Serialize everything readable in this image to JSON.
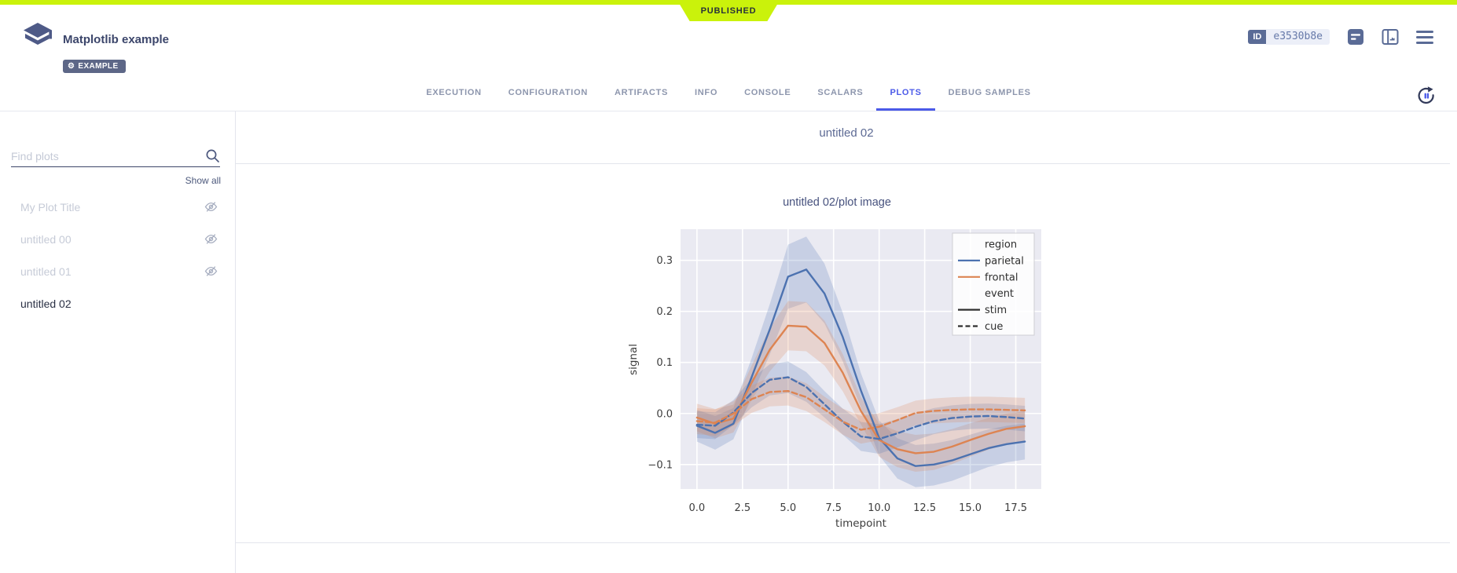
{
  "ribbon": {
    "published_label": "PUBLISHED",
    "color": "#caf20b"
  },
  "header": {
    "title": "Matplotlib example",
    "tag_label": "EXAMPLE",
    "id_label": "ID",
    "id_value": "e3530b8e",
    "icons": [
      "details-icon",
      "side-panel-chart-icon",
      "menu-icon"
    ]
  },
  "tabs": {
    "items": [
      {
        "label": "EXECUTION",
        "active": false
      },
      {
        "label": "CONFIGURATION",
        "active": false
      },
      {
        "label": "ARTIFACTS",
        "active": false
      },
      {
        "label": "INFO",
        "active": false
      },
      {
        "label": "CONSOLE",
        "active": false
      },
      {
        "label": "SCALARS",
        "active": false
      },
      {
        "label": "PLOTS",
        "active": true
      },
      {
        "label": "DEBUG SAMPLES",
        "active": false
      }
    ],
    "active_color": "#4b5ae8",
    "refresh_icon": "auto-refresh-pause-icon"
  },
  "sidebar": {
    "search_placeholder": "Find plots",
    "search_icon": "magnifier",
    "show_all_label": "Show all",
    "hidden_icon": "eye-off-icon",
    "items": [
      {
        "label": "My Plot Title",
        "hidden": true,
        "active": false
      },
      {
        "label": "untitled 00",
        "hidden": true,
        "active": false
      },
      {
        "label": "untitled 01",
        "hidden": true,
        "active": false
      },
      {
        "label": "untitled 02",
        "hidden": false,
        "active": true
      }
    ]
  },
  "main": {
    "group_title": "untitled 02"
  },
  "colors": {
    "published_green": "#caf20b",
    "accent_blue": "#4b5ae8",
    "slate": "#5a6b96",
    "seaborn_blue": "#4c72b0",
    "seaborn_orange": "#dd8452"
  },
  "chart_data": {
    "type": "line",
    "title": "untitled 02/plot image",
    "xlabel": "timepoint",
    "ylabel": "signal",
    "xlim": [
      -0.9,
      18.9
    ],
    "ylim": [
      -0.148,
      0.361
    ],
    "xticks": [
      0,
      2.5,
      5,
      7.5,
      10,
      12.5,
      15,
      17.5
    ],
    "xtick_labels": [
      "0.0",
      "2.5",
      "5.0",
      "7.5",
      "10.0",
      "12.5",
      "15.0",
      "17.5"
    ],
    "yticks": [
      -0.1,
      0,
      0.1,
      0.2,
      0.3
    ],
    "ytick_labels": [
      "−0.1",
      "0.0",
      "0.1",
      "0.2",
      "0.3"
    ],
    "grid": true,
    "legend_position": "upper right",
    "plot_background": "#eaeaf2",
    "grid_color": "#ffffff",
    "x": [
      0,
      1,
      2,
      3,
      4,
      5,
      6,
      7,
      8,
      9,
      10,
      11,
      12,
      13,
      14,
      15,
      16,
      17,
      18
    ],
    "series": [
      {
        "name": "parietal / stim",
        "region": "parietal",
        "event": "stim",
        "color": "#4c72b0",
        "style": "solid",
        "values": [
          -0.024,
          -0.038,
          -0.02,
          0.071,
          0.165,
          0.268,
          0.282,
          0.235,
          0.15,
          0.045,
          -0.048,
          -0.088,
          -0.103,
          -0.1,
          -0.092,
          -0.08,
          -0.068,
          -0.06,
          -0.055
        ],
        "ci_base": 0.028,
        "ci_scale": 0.13
      },
      {
        "name": "frontal / stim",
        "region": "frontal",
        "event": "stim",
        "color": "#dd8452",
        "style": "solid",
        "values": [
          -0.008,
          -0.02,
          -0.01,
          0.06,
          0.125,
          0.172,
          0.17,
          0.138,
          0.08,
          0.005,
          -0.052,
          -0.07,
          -0.078,
          -0.075,
          -0.065,
          -0.052,
          -0.04,
          -0.03,
          -0.025
        ],
        "ci_base": 0.026,
        "ci_scale": 0.13
      },
      {
        "name": "parietal / cue",
        "region": "parietal",
        "event": "cue",
        "color": "#4c72b0",
        "style": "dashed",
        "values": [
          -0.022,
          -0.024,
          0.002,
          0.04,
          0.066,
          0.071,
          0.052,
          0.018,
          -0.016,
          -0.045,
          -0.05,
          -0.039,
          -0.026,
          -0.015,
          -0.009,
          -0.006,
          -0.005,
          -0.007,
          -0.01
        ],
        "ci_base": 0.024,
        "ci_scale": 0.1
      },
      {
        "name": "frontal / cue",
        "region": "frontal",
        "event": "cue",
        "color": "#dd8452",
        "style": "dashed",
        "values": [
          -0.015,
          -0.018,
          0.0,
          0.028,
          0.042,
          0.044,
          0.032,
          0.008,
          -0.016,
          -0.032,
          -0.026,
          -0.013,
          0.001,
          0.005,
          0.007,
          0.008,
          0.008,
          0.007,
          0.006
        ],
        "ci_base": 0.024,
        "ci_scale": 0.1
      }
    ],
    "legend": {
      "entries": [
        {
          "type": "header",
          "label": "region"
        },
        {
          "type": "line",
          "label": "parietal",
          "color": "#4c72b0",
          "style": "solid"
        },
        {
          "type": "line",
          "label": "frontal",
          "color": "#dd8452",
          "style": "solid"
        },
        {
          "type": "header",
          "label": "event"
        },
        {
          "type": "line",
          "label": "stim",
          "color": "#2f2f2f",
          "style": "solid"
        },
        {
          "type": "line",
          "label": "cue",
          "color": "#2f2f2f",
          "style": "dashed"
        }
      ]
    }
  }
}
